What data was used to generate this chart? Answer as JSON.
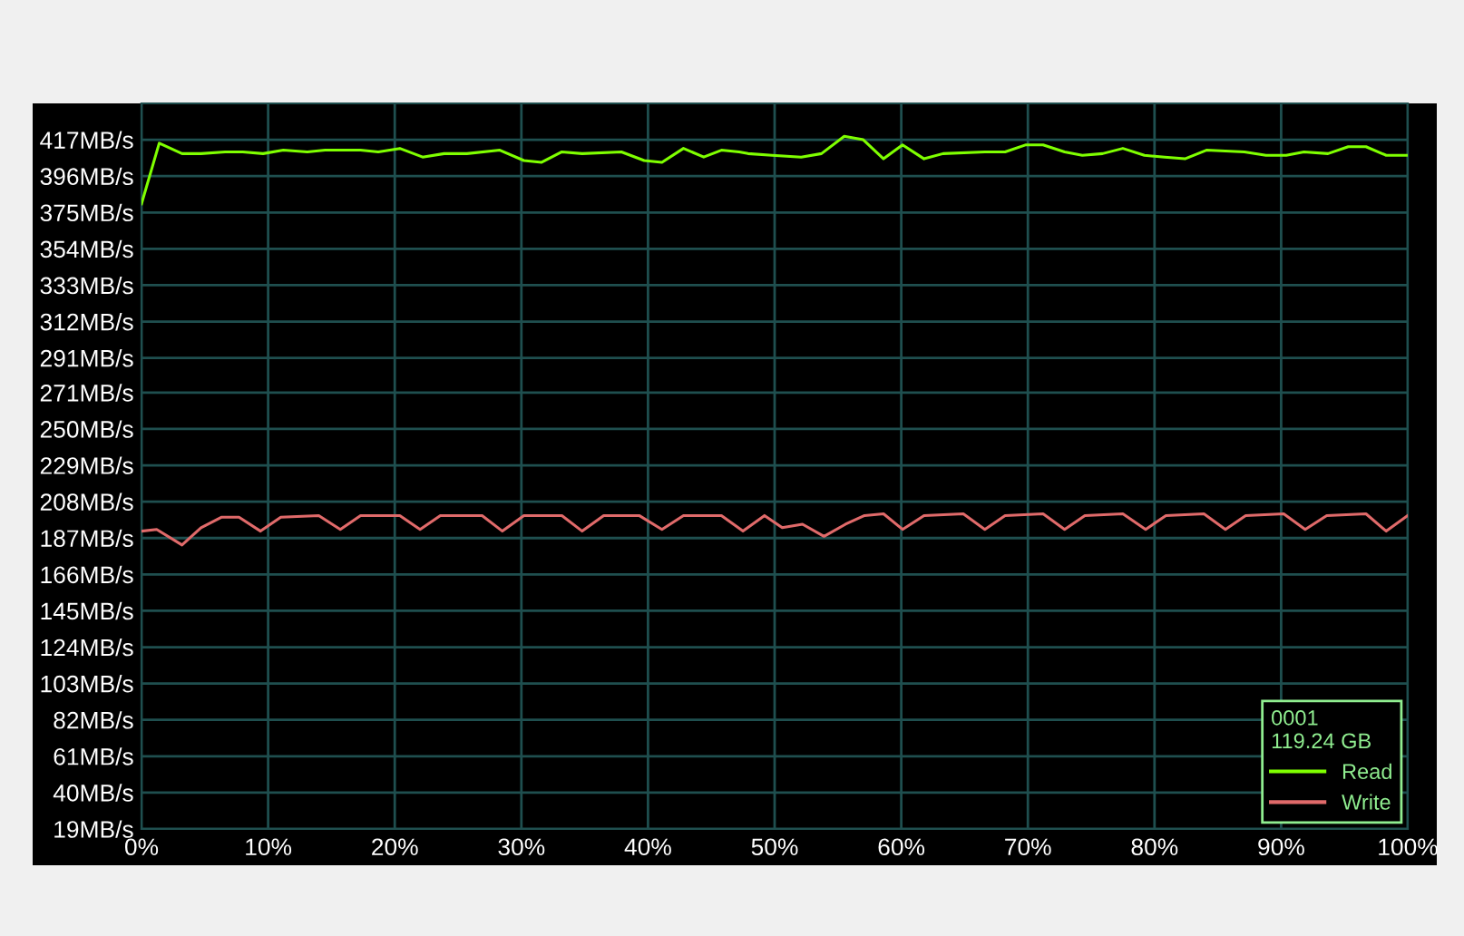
{
  "chart_data": {
    "type": "line",
    "series": [
      {
        "name": "Read",
        "color": "#7fff00",
        "x": [
          0,
          1.4,
          3.2,
          4.7,
          6.6,
          8.0,
          9.6,
          11.2,
          13.1,
          14.5,
          17.3,
          18.7,
          20.4,
          22.2,
          23.9,
          25.7,
          28.3,
          30.2,
          31.6,
          33.2,
          34.8,
          37.9,
          39.7,
          41.1,
          42.8,
          44.4,
          45.8,
          47.2,
          47.9,
          49.8,
          52.1,
          53.7,
          55.5,
          57.0,
          58.6,
          60.1,
          61.8,
          63.3,
          66.6,
          68.2,
          69.8,
          71.2,
          72.9,
          74.3,
          75.9,
          77.5,
          79.2,
          80.8,
          82.4,
          84.1,
          87.1,
          88.8,
          90.4,
          91.8,
          93.7,
          95.3,
          96.7,
          98.3,
          100
        ],
        "values": [
          380,
          415,
          409,
          409,
          410,
          410,
          409,
          411,
          410,
          411,
          411,
          410,
          412,
          407,
          409,
          409,
          411,
          405,
          404,
          410,
          409,
          410,
          405,
          404,
          412,
          407,
          411,
          410,
          409,
          408,
          407,
          409,
          419,
          417,
          406,
          414,
          406,
          409,
          410,
          410,
          414,
          414,
          410,
          408,
          409,
          412,
          408,
          407,
          406,
          411,
          410,
          408,
          408,
          410,
          409,
          413,
          413,
          408,
          408
        ]
      },
      {
        "name": "Write",
        "color": "#e06a6a",
        "x": [
          0,
          1.2,
          3.2,
          4.7,
          6.3,
          7.7,
          9.4,
          11.0,
          14.0,
          15.7,
          17.3,
          20.4,
          22.0,
          23.6,
          26.9,
          28.5,
          30.2,
          33.2,
          34.8,
          36.5,
          39.3,
          41.1,
          42.8,
          45.8,
          47.5,
          49.2,
          50.6,
          52.2,
          53.9,
          55.6,
          57.1,
          58.6,
          60.1,
          61.8,
          64.9,
          66.6,
          68.2,
          71.2,
          72.9,
          74.5,
          77.5,
          79.3,
          80.9,
          83.9,
          85.6,
          87.2,
          90.2,
          91.9,
          93.6,
          96.7,
          98.3,
          100
        ],
        "values": [
          191,
          192,
          183,
          193,
          199,
          199,
          191,
          199,
          200,
          192,
          200,
          200,
          192,
          200,
          200,
          191,
          200,
          200,
          191,
          200,
          200,
          192,
          200,
          200,
          191,
          200,
          193,
          195,
          188,
          195,
          200,
          201,
          192,
          200,
          201,
          192,
          200,
          201,
          192,
          200,
          201,
          192,
          200,
          201,
          192,
          200,
          201,
          192,
          200,
          201,
          191,
          200
        ]
      }
    ],
    "xlim": [
      0,
      100
    ],
    "xticks": [
      {
        "value": 0,
        "label": "0%"
      },
      {
        "value": 10,
        "label": "10%"
      },
      {
        "value": 20,
        "label": "20%"
      },
      {
        "value": 30,
        "label": "30%"
      },
      {
        "value": 40,
        "label": "40%"
      },
      {
        "value": 50,
        "label": "50%"
      },
      {
        "value": 60,
        "label": "60%"
      },
      {
        "value": 70,
        "label": "70%"
      },
      {
        "value": 80,
        "label": "80%"
      },
      {
        "value": 90,
        "label": "90%"
      },
      {
        "value": 100,
        "label": "100%"
      }
    ],
    "ylim": [
      19,
      438
    ],
    "yticks": [
      {
        "value": 19,
        "label": "19MB/s"
      },
      {
        "value": 40,
        "label": "40MB/s"
      },
      {
        "value": 61,
        "label": "61MB/s"
      },
      {
        "value": 82,
        "label": "82MB/s"
      },
      {
        "value": 103,
        "label": "103MB/s"
      },
      {
        "value": 124,
        "label": "124MB/s"
      },
      {
        "value": 145,
        "label": "145MB/s"
      },
      {
        "value": 166,
        "label": "166MB/s"
      },
      {
        "value": 187,
        "label": "187MB/s"
      },
      {
        "value": 208,
        "label": "208MB/s"
      },
      {
        "value": 229,
        "label": "229MB/s"
      },
      {
        "value": 250,
        "label": "250MB/s"
      },
      {
        "value": 271,
        "label": "271MB/s"
      },
      {
        "value": 291,
        "label": "291MB/s"
      },
      {
        "value": 312,
        "label": "312MB/s"
      },
      {
        "value": 333,
        "label": "333MB/s"
      },
      {
        "value": 354,
        "label": "354MB/s"
      },
      {
        "value": 375,
        "label": "375MB/s"
      },
      {
        "value": 396,
        "label": "396MB/s"
      },
      {
        "value": 417,
        "label": "417MB/s"
      }
    ],
    "grid": true,
    "legend": "bottom right",
    "legend_title": "0001\n119.24 GB",
    "marker": "none",
    "line_style": "solid"
  }
}
